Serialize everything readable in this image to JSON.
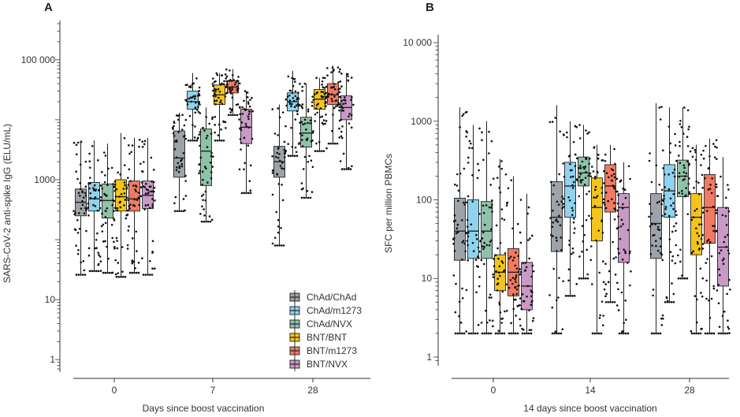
{
  "chart_data": [
    {
      "panel": "A",
      "type": "box",
      "ylabel": "SARS-CoV-2 anti-spike IgG (ELU/mL)",
      "xlabel": "Days since boost vaccination",
      "yscale": "log",
      "ylim": [
        0.7,
        400000
      ],
      "yticks": [
        {
          "value": 1,
          "label": "1"
        },
        {
          "value": 10,
          "label": "10"
        },
        {
          "value": 1000,
          "label": "1000"
        },
        {
          "value": 100000,
          "label": "100 000"
        }
      ],
      "categories": [
        "0",
        "7",
        "28"
      ],
      "groups": [
        {
          "name": "ChAd/ChAd",
          "color": "#9da3a8",
          "boxes": [
            {
              "q1": 250,
              "median": 420,
              "q3": 700,
              "lo": 26,
              "hi": 4500
            },
            {
              "q1": 1100,
              "median": 2300,
              "q3": 6500,
              "lo": 300,
              "hi": 13000
            },
            {
              "q1": 1100,
              "median": 2000,
              "q3": 3600,
              "lo": 80,
              "hi": 18000
            }
          ]
        },
        {
          "name": "ChAd/m1273",
          "color": "#8fd3ee",
          "boxes": [
            {
              "q1": 300,
              "median": 480,
              "q3": 900,
              "lo": 30,
              "hi": 4500
            },
            {
              "q1": 15000,
              "median": 20000,
              "q3": 30000,
              "lo": 4500,
              "hi": 60000
            },
            {
              "q1": 14000,
              "median": 20000,
              "q3": 28000,
              "lo": 2500,
              "hi": 65000
            }
          ]
        },
        {
          "name": "ChAd/NVX",
          "color": "#8fc2a8",
          "boxes": [
            {
              "q1": 230,
              "median": 450,
              "q3": 850,
              "lo": 28,
              "hi": 4000
            },
            {
              "q1": 800,
              "median": 3000,
              "q3": 7000,
              "lo": 200,
              "hi": 16000
            },
            {
              "q1": 3500,
              "median": 6000,
              "q3": 11000,
              "lo": 500,
              "hi": 40000
            }
          ]
        },
        {
          "name": "BNT/BNT",
          "color": "#f4c41a",
          "boxes": [
            {
              "q1": 300,
              "median": 520,
              "q3": 1000,
              "lo": 24,
              "hi": 6000
            },
            {
              "q1": 18000,
              "median": 26000,
              "q3": 38000,
              "lo": 4500,
              "hi": 60000
            },
            {
              "q1": 15000,
              "median": 22000,
              "q3": 32000,
              "lo": 3000,
              "hi": 50000
            }
          ]
        },
        {
          "name": "BNT/m1273",
          "color": "#f27a62",
          "boxes": [
            {
              "q1": 300,
              "median": 480,
              "q3": 950,
              "lo": 28,
              "hi": 5000
            },
            {
              "q1": 28000,
              "median": 35000,
              "q3": 45000,
              "lo": 12000,
              "hi": 70000
            },
            {
              "q1": 18000,
              "median": 26000,
              "q3": 40000,
              "lo": 4000,
              "hi": 80000
            }
          ]
        },
        {
          "name": "BNT/NVX",
          "color": "#c99ac5",
          "boxes": [
            {
              "q1": 330,
              "median": 550,
              "q3": 950,
              "lo": 26,
              "hi": 5000
            },
            {
              "q1": 4000,
              "median": 7500,
              "q3": 15000,
              "lo": 600,
              "hi": 30000
            },
            {
              "q1": 10000,
              "median": 16000,
              "q3": 25000,
              "lo": 1500,
              "hi": 60000
            }
          ]
        }
      ],
      "legend": {
        "placement": "bottom-right",
        "entries": [
          "ChAd/ChAd",
          "ChAd/m1273",
          "ChAd/NVX",
          "BNT/BNT",
          "BNT/m1273",
          "BNT/NVX"
        ]
      }
    },
    {
      "panel": "B",
      "type": "box",
      "ylabel": "SFC per million PBMCs",
      "xlabel": "14 days since boost vaccination",
      "yscale": "log",
      "ylim": [
        0.85,
        11500
      ],
      "yticks": [
        {
          "value": 1,
          "label": "1"
        },
        {
          "value": 10,
          "label": "10"
        },
        {
          "value": 100,
          "label": "100"
        },
        {
          "value": 1000,
          "label": "1000"
        },
        {
          "value": 10000,
          "label": "10 000"
        }
      ],
      "categories": [
        "0",
        "14",
        "28"
      ],
      "groups": [
        {
          "name": "ChAd/ChAd",
          "color": "#9da3a8",
          "boxes": [
            {
              "q1": 17,
              "median": 40,
              "q3": 105,
              "lo": 2,
              "hi": 1500
            },
            {
              "q1": 22,
              "median": 60,
              "q3": 170,
              "lo": 2,
              "hi": 1600
            },
            {
              "q1": 18,
              "median": 50,
              "q3": 120,
              "lo": 2,
              "hi": 1700
            }
          ]
        },
        {
          "name": "ChAd/m1273",
          "color": "#8fd3ee",
          "boxes": [
            {
              "q1": 18,
              "median": 40,
              "q3": 100,
              "lo": 2,
              "hi": 900
            },
            {
              "q1": 60,
              "median": 150,
              "q3": 300,
              "lo": 6,
              "hi": 1000
            },
            {
              "q1": 60,
              "median": 130,
              "q3": 280,
              "lo": 5,
              "hi": 1500
            }
          ]
        },
        {
          "name": "ChAd/NVX",
          "color": "#8fc2a8",
          "boxes": [
            {
              "q1": 18,
              "median": 40,
              "q3": 95,
              "lo": 2,
              "hi": 1000
            },
            {
              "q1": 150,
              "median": 220,
              "q3": 350,
              "lo": 10,
              "hi": 900
            },
            {
              "q1": 110,
              "median": 200,
              "q3": 320,
              "lo": 10,
              "hi": 1500
            }
          ]
        },
        {
          "name": "BNT/BNT",
          "color": "#f4c41a",
          "boxes": [
            {
              "q1": 7,
              "median": 12,
              "q3": 20,
              "lo": 2,
              "hi": 330
            },
            {
              "q1": 30,
              "median": 80,
              "q3": 190,
              "lo": 2,
              "hi": 500
            },
            {
              "q1": 20,
              "median": 60,
              "q3": 120,
              "lo": 2,
              "hi": 500
            }
          ]
        },
        {
          "name": "BNT/m1273",
          "color": "#f27a62",
          "boxes": [
            {
              "q1": 6,
              "median": 12,
              "q3": 24,
              "lo": 2,
              "hi": 200
            },
            {
              "q1": 70,
              "median": 150,
              "q3": 280,
              "lo": 5,
              "hi": 500
            },
            {
              "q1": 28,
              "median": 80,
              "q3": 210,
              "lo": 2,
              "hi": 600
            }
          ]
        },
        {
          "name": "BNT/NVX",
          "color": "#c99ac5",
          "boxes": [
            {
              "q1": 4,
              "median": 8,
              "q3": 16,
              "lo": 2,
              "hi": 120
            },
            {
              "q1": 16,
              "median": 80,
              "q3": 120,
              "lo": 2,
              "hi": 300
            },
            {
              "q1": 8,
              "median": 25,
              "q3": 80,
              "lo": 2,
              "hi": 350
            }
          ]
        }
      ]
    }
  ]
}
